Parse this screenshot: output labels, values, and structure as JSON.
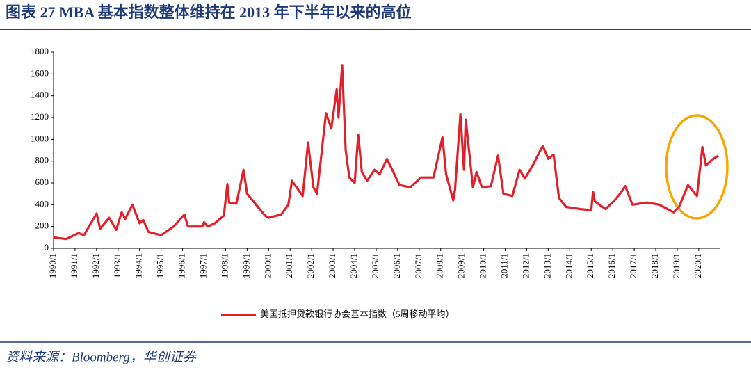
{
  "chart_data": {
    "type": "line",
    "title": "图表 27   MBA 基本指数整体维持在 2013 年下半年以来的高位",
    "source": "资料来源：Bloomberg，华创证券",
    "x": [
      "1990/1",
      "1990/8",
      "1991/3",
      "1991/6",
      "1992/1",
      "1992/3",
      "1992/8",
      "1992/12",
      "1993/3",
      "1993/5",
      "1993/9",
      "1994/1",
      "1994/3",
      "1994/6",
      "1995/1",
      "1995/8",
      "1996/2",
      "1996/4",
      "1996/12",
      "1997/1",
      "1997/3",
      "1997/7",
      "1997/12",
      "1998/2",
      "1998/3",
      "1998/7",
      "1998/11",
      "1999/1",
      "1999/5",
      "1999/11",
      "2000/1",
      "2000/8",
      "2000/12",
      "2001/2",
      "2001/5",
      "2001/8",
      "2001/11",
      "2002/2",
      "2002/4",
      "2002/9",
      "2002/12",
      "2003/3",
      "2003/4",
      "2003/6",
      "2003/8",
      "2003/10",
      "2004/1",
      "2004/3",
      "2004/5",
      "2004/8",
      "2004/12",
      "2005/3",
      "2005/7",
      "2005/10",
      "2006/2",
      "2006/8",
      "2007/2",
      "2007/9",
      "2008/2",
      "2008/4",
      "2008/8",
      "2008/9",
      "2008/12",
      "2009/2",
      "2009/3",
      "2009/7",
      "2009/9",
      "2009/12",
      "2010/5",
      "2010/9",
      "2010/12",
      "2011/5",
      "2011/9",
      "2011/12",
      "2012/5",
      "2012/8",
      "2012/10",
      "2013/1",
      "2013/4",
      "2013/7",
      "2013/11",
      "2014/7",
      "2015/1",
      "2015/2",
      "2015/3",
      "2015/9",
      "2016/2",
      "2016/5",
      "2016/8",
      "2016/12",
      "2017/8",
      "2018/3",
      "2018/11",
      "2019/2",
      "2019/7",
      "2019/12",
      "2020/3",
      "2020/5",
      "2020/9",
      "2020/12"
    ],
    "series": [
      {
        "name": "美国抵押贷款银行协会基本指数（5周移动平均）",
        "color": "#e3202a",
        "values": [
          100,
          85,
          140,
          120,
          320,
          180,
          280,
          170,
          330,
          270,
          400,
          230,
          260,
          150,
          120,
          200,
          310,
          200,
          200,
          240,
          200,
          230,
          300,
          590,
          420,
          410,
          720,
          500,
          420,
          300,
          280,
          310,
          400,
          620,
          550,
          480,
          970,
          560,
          500,
          1240,
          1100,
          1460,
          1200,
          1680,
          900,
          650,
          600,
          1040,
          700,
          620,
          720,
          680,
          820,
          720,
          580,
          560,
          650,
          650,
          1020,
          680,
          440,
          540,
          1230,
          720,
          1180,
          560,
          700,
          560,
          570,
          850,
          500,
          480,
          720,
          640,
          780,
          880,
          940,
          820,
          860,
          460,
          380,
          360,
          350,
          520,
          430,
          360,
          440,
          500,
          570,
          400,
          420,
          400,
          330,
          380,
          580,
          480,
          930,
          760,
          820,
          850
        ]
      }
    ],
    "xticks": [
      "1990/1",
      "1991/1",
      "1992/1",
      "1993/1",
      "1994/1",
      "1995/1",
      "1996/1",
      "1997/1",
      "1998/1",
      "1999/1",
      "2000/1",
      "2001/1",
      "2002/1",
      "2003/1",
      "2004/1",
      "2005/1",
      "2006/1",
      "2007/1",
      "2008/1",
      "2009/1",
      "2010/1",
      "2011/1",
      "2012/1",
      "2013/1",
      "2014/1",
      "2015/1",
      "2016/1",
      "2017/1",
      "2018/1",
      "2019/1",
      "2020/1"
    ],
    "ylim": [
      0,
      1800
    ],
    "yticks": [
      0,
      200,
      400,
      600,
      800,
      1000,
      1200,
      1400,
      1600,
      1800
    ],
    "grid": false
  }
}
